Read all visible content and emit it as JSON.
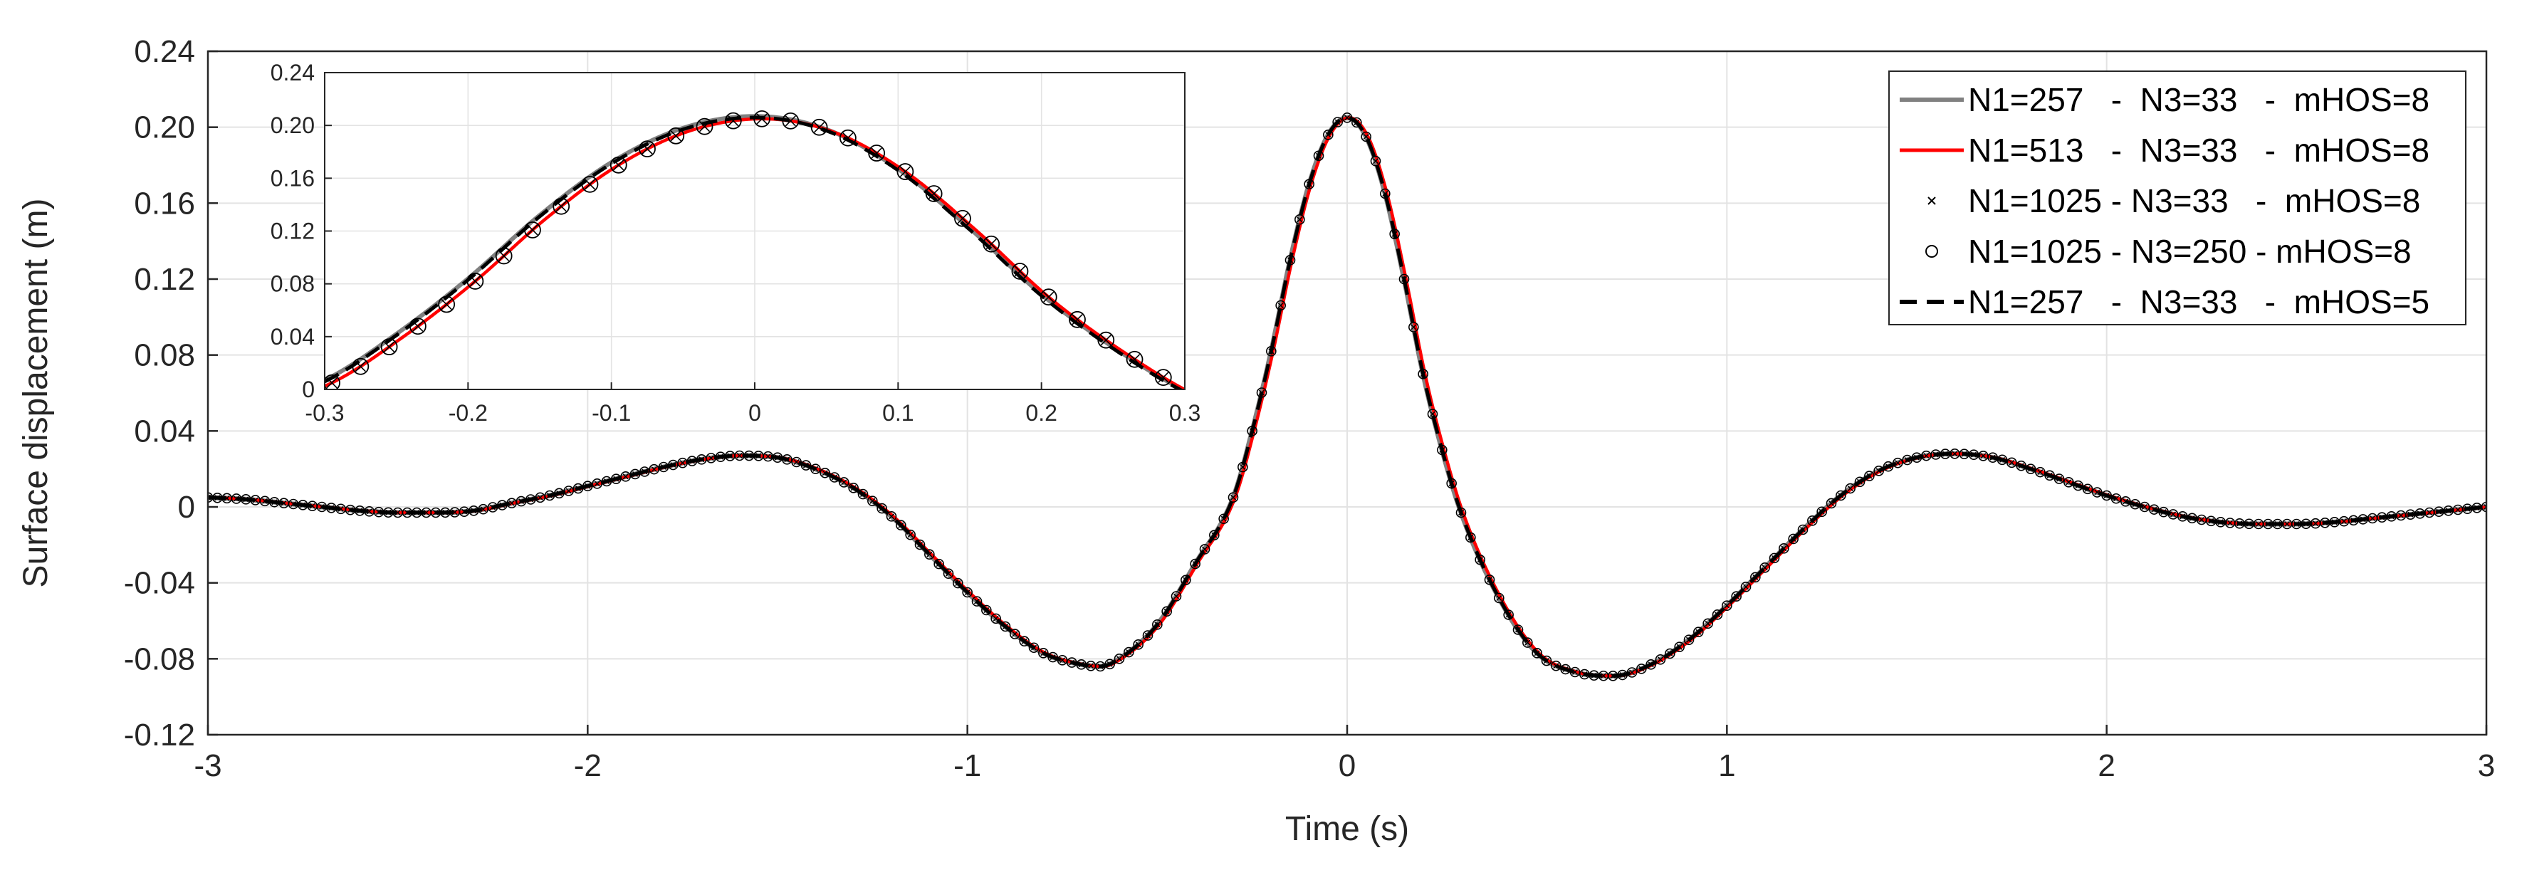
{
  "chart_data": {
    "type": "line",
    "xlabel": "Time (s)",
    "ylabel": "Surface displacement (m)",
    "xlim": [
      -3,
      3
    ],
    "ylim": [
      -0.12,
      0.24
    ],
    "xticks": [
      -3,
      -2,
      -1,
      0,
      1,
      2,
      3
    ],
    "xtick_labels": [
      "-3",
      "-2",
      "-1",
      "0",
      "1",
      "2",
      "3"
    ],
    "yticks": [
      -0.12,
      -0.08,
      -0.04,
      0,
      0.04,
      0.08,
      0.12,
      0.16,
      0.2,
      0.24
    ],
    "ytick_labels": [
      "-0.12",
      "-0.08",
      "-0.04",
      "0",
      "0.04",
      "0.08",
      "0.12",
      "0.16",
      "0.20",
      "0.24"
    ],
    "grid": true,
    "legend_position": "top-right",
    "colors": {
      "gray": "#808080",
      "red": "#ff0000",
      "black": "#000000"
    },
    "series": [
      {
        "name": "N1=257   -  N3=33   -  mHOS=8",
        "style": "solid",
        "color": "#808080"
      },
      {
        "name": "N1=513   -  N3=33   -  mHOS=8",
        "style": "solid",
        "color": "#ff0000"
      },
      {
        "name": "N1=1025 - N3=33   -  mHOS=8",
        "style": "x-marker",
        "color": "#000000"
      },
      {
        "name": "N1=1025 - N3=250 - mHOS=8",
        "style": "circle-marker",
        "color": "#000000"
      },
      {
        "name": "N1=257   -  N3=33   -  mHOS=5",
        "style": "dashed",
        "color": "#000000"
      }
    ],
    "x": [
      -3,
      -2.9,
      -2.8,
      -2.7,
      -2.6,
      -2.5,
      -2.4,
      -2.3,
      -2.2,
      -2.1,
      -2,
      -1.9,
      -1.8,
      -1.7,
      -1.6,
      -1.5,
      -1.4,
      -1.3,
      -1.2,
      -1.1,
      -1,
      -0.9,
      -0.8,
      -0.7,
      -0.65,
      -0.6,
      -0.5,
      -0.4,
      -0.3,
      -0.25,
      -0.2,
      -0.15,
      -0.1,
      -0.05,
      0,
      0.05,
      0.1,
      0.15,
      0.2,
      0.25,
      0.3,
      0.4,
      0.5,
      0.6,
      0.7,
      0.8,
      0.9,
      1,
      1.1,
      1.2,
      1.3,
      1.4,
      1.5,
      1.6,
      1.7,
      1.8,
      1.9,
      2,
      2.1,
      2.2,
      2.3,
      2.4,
      2.5,
      2.6,
      2.7,
      2.8,
      2.9,
      3
    ],
    "y": [
      0.005,
      0.004,
      0.002,
      0,
      -0.002,
      -0.003,
      -0.003,
      -0.002,
      0.002,
      0.006,
      0.011,
      0.016,
      0.021,
      0.025,
      0.027,
      0.026,
      0.02,
      0.01,
      -0.005,
      -0.025,
      -0.045,
      -0.063,
      -0.077,
      -0.083,
      -0.084,
      -0.08,
      -0.062,
      -0.03,
      0.005,
      0.04,
      0.082,
      0.13,
      0.17,
      0.196,
      0.205,
      0.195,
      0.165,
      0.12,
      0.07,
      0.03,
      -0.003,
      -0.048,
      -0.077,
      -0.087,
      -0.089,
      -0.083,
      -0.07,
      -0.052,
      -0.032,
      -0.012,
      0.006,
      0.019,
      0.026,
      0.028,
      0.026,
      0.02,
      0.013,
      0.006,
      0,
      -0.005,
      -0.008,
      -0.009,
      -0.009,
      -0.008,
      -0.006,
      -0.004,
      -0.002,
      0
    ],
    "inset": {
      "xlim": [
        -0.3,
        0.3
      ],
      "ylim": [
        0,
        0.24
      ],
      "xticks": [
        -0.3,
        -0.2,
        -0.1,
        0,
        0.1,
        0.2,
        0.3
      ],
      "xtick_labels": [
        "-0.3",
        "-0.2",
        "-0.1",
        "0",
        "0.1",
        "0.2",
        "0.3"
      ],
      "yticks": [
        0,
        0.04,
        0.08,
        0.12,
        0.16,
        0.2,
        0.24
      ],
      "ytick_labels": [
        "0",
        "0.04",
        "0.08",
        "0.12",
        "0.16",
        "0.20",
        "0.24"
      ]
    }
  }
}
